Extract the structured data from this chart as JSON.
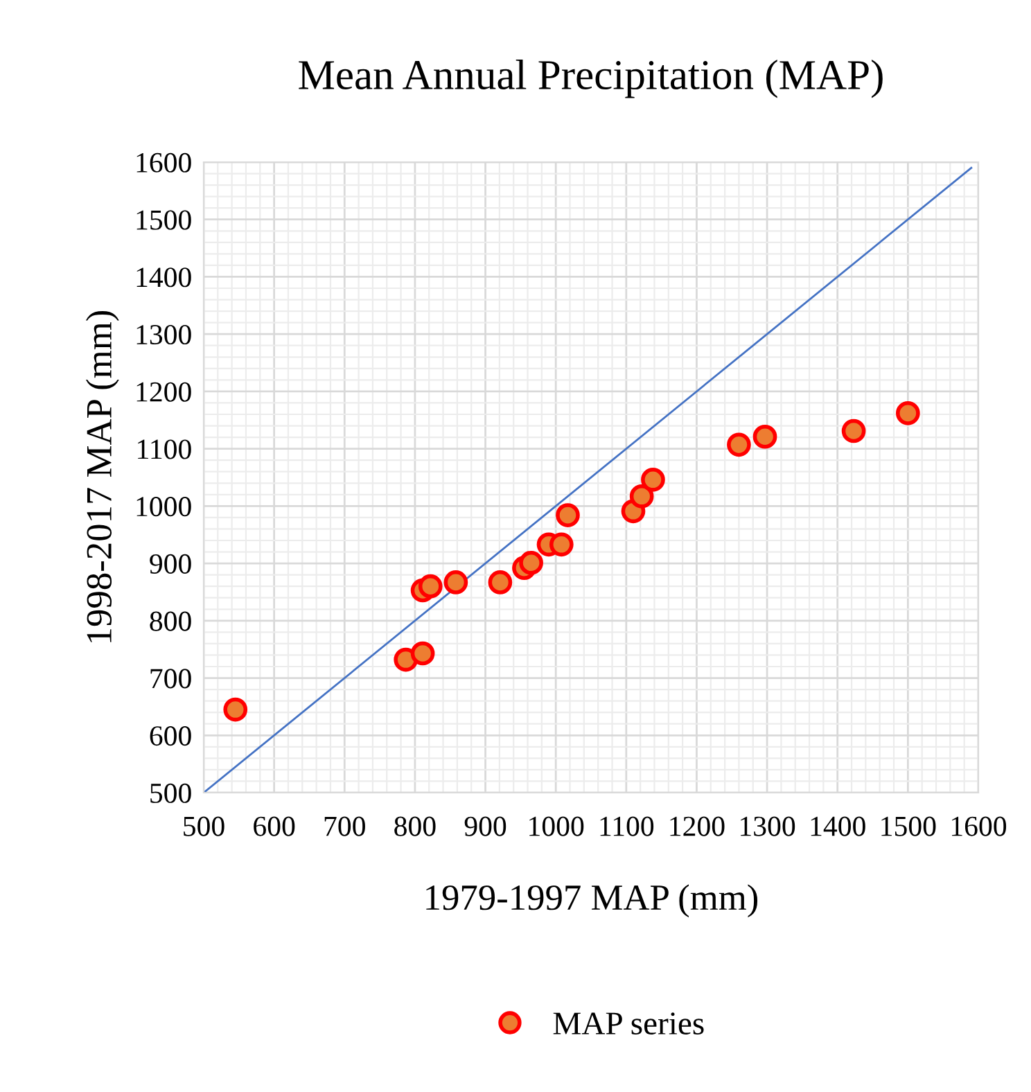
{
  "chart_data": {
    "type": "scatter",
    "title": "Mean Annual Precipitation (MAP)",
    "xlabel": "1979-1997 MAP (mm)",
    "ylabel": "1998-2017 MAP (mm)",
    "x": [
      545,
      787,
      811,
      811,
      822,
      858,
      921,
      955,
      965,
      990,
      1008,
      1017,
      1110,
      1122,
      1138,
      1260,
      1297,
      1423,
      1500
    ],
    "series": [
      {
        "name": "MAP series",
        "color": "#ed7d31",
        "marker": "circle",
        "values": [
          645,
          732,
          743,
          853,
          860,
          867,
          867,
          892,
          901,
          933,
          933,
          984,
          991,
          1017,
          1046,
          1107,
          1121,
          1131,
          1162
        ]
      },
      {
        "type": "line",
        "color": "#4472c4",
        "x": [
          500,
          1590
        ],
        "values": [
          500,
          1590
        ],
        "line_style": "solid",
        "marker": "none"
      }
    ],
    "xlim": [
      500,
      1600
    ],
    "ylim": [
      500,
      1600
    ],
    "xticks": [
      500,
      600,
      700,
      800,
      900,
      1000,
      1100,
      1200,
      1300,
      1400,
      1500,
      1600
    ],
    "yticks": [
      500,
      600,
      700,
      800,
      900,
      1000,
      1100,
      1200,
      1300,
      1400,
      1500,
      1600
    ],
    "grid": true,
    "legend": "bottom"
  }
}
